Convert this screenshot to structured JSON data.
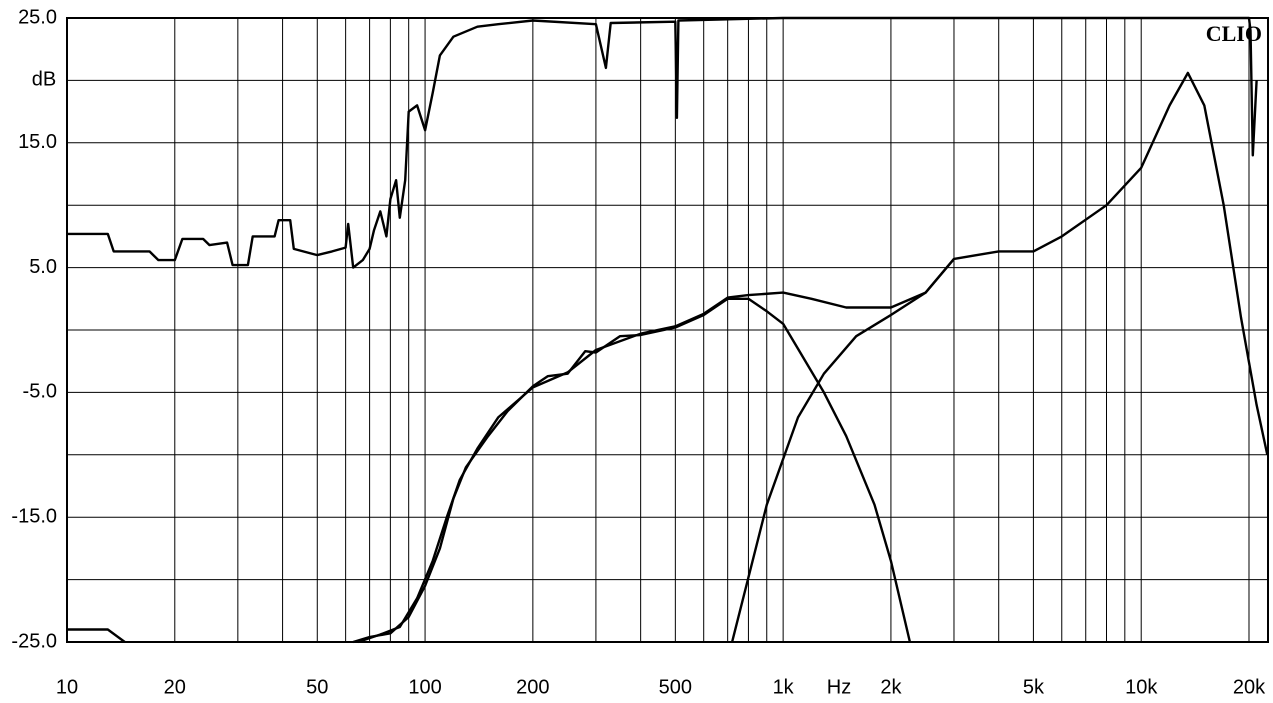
{
  "chart_data": {
    "type": "line",
    "title": "CLIO",
    "x_label": "Hz",
    "y_label": "dB",
    "log_x": true,
    "grid": true,
    "xlim": [
      10,
      22600
    ],
    "ylim": [
      -25,
      25
    ],
    "xticks": [
      10,
      20,
      50,
      100,
      200,
      500,
      {
        "value": 1000,
        "label": "1k"
      },
      {
        "value": 2000,
        "label": "2k"
      },
      {
        "value": 5000,
        "label": "5k"
      },
      {
        "value": 10000,
        "label": "10k"
      },
      {
        "value": 20000,
        "label": "20k"
      }
    ],
    "minor_xticks": [
      30,
      40,
      60,
      70,
      80,
      90,
      300,
      400,
      600,
      700,
      800,
      900,
      3000,
      4000,
      6000,
      7000,
      8000,
      9000
    ],
    "yticks": [
      {
        "value": 25,
        "label": "25.0"
      },
      {
        "value": 15,
        "label": "15.0"
      },
      {
        "value": 5,
        "label": "5.0"
      },
      {
        "value": -5,
        "label": "-5.0"
      },
      {
        "value": -15,
        "label": "-15.0"
      },
      {
        "value": -25,
        "label": "-25.0"
      }
    ],
    "minor_yticks": [
      20,
      10,
      0,
      -10,
      -20
    ],
    "series": [
      {
        "color": "#000000",
        "x": [
          10,
          13,
          13.5,
          17,
          18,
          20,
          21,
          24,
          25,
          28,
          29,
          32,
          33,
          38,
          39,
          42,
          43,
          50,
          55,
          60,
          61,
          63,
          67,
          70,
          72,
          75,
          78,
          80,
          83,
          85,
          88,
          90,
          95,
          100,
          105,
          110,
          120,
          140,
          160,
          200,
          300,
          320,
          330,
          500,
          505,
          510,
          1000,
          20000,
          20200,
          20500,
          21000
        ],
        "values": [
          7.7,
          7.7,
          6.3,
          6.3,
          5.6,
          5.6,
          7.3,
          7.3,
          6.8,
          7.0,
          5.2,
          5.2,
          7.5,
          7.5,
          8.8,
          8.8,
          6.5,
          6.0,
          6.3,
          6.6,
          8.5,
          5.0,
          5.6,
          6.5,
          8.0,
          9.5,
          7.5,
          10.5,
          12.0,
          9.0,
          12.0,
          17.5,
          18.0,
          16.0,
          19.0,
          22.0,
          23.5,
          24.3,
          24.5,
          24.8,
          24.5,
          21.0,
          24.6,
          24.7,
          17.0,
          24.8,
          25,
          25,
          24,
          14,
          20
        ]
      },
      {
        "color": "#000000",
        "x": [
          10,
          13,
          14.5,
          63,
          63,
          70,
          80,
          90,
          100,
          110,
          120,
          130,
          150,
          170,
          200,
          220,
          250,
          280,
          300,
          350,
          400,
          500,
          600,
          700,
          800,
          900,
          1000,
          1100,
          1300,
          1500,
          1800,
          2000,
          2260
        ],
        "values": [
          -24,
          -24,
          -25,
          null,
          -25,
          -24.6,
          -24.3,
          -23,
          -20.5,
          -17.5,
          -13.5,
          -11,
          -8.5,
          -6.5,
          -4.5,
          -3.7,
          -3.5,
          -1.7,
          -1.8,
          -0.5,
          -0.4,
          0.2,
          1.2,
          2.5,
          2.5,
          1.5,
          0.5,
          -1.5,
          -5,
          -8.5,
          -14,
          -18.5,
          -25
        ]
      },
      {
        "color": "#000000",
        "x": [
          720,
          900,
          1100,
          1300,
          1600,
          2000,
          2500,
          3000,
          4000,
          5000,
          6000,
          8000,
          10000,
          12000,
          13500,
          15000,
          17000,
          19000,
          21000,
          22500
        ],
        "values": [
          -25,
          -14,
          -7,
          -3.5,
          -0.5,
          1.2,
          3.0,
          5.7,
          6.3,
          6.3,
          7.5,
          10,
          13,
          18,
          20.6,
          18,
          10,
          1,
          -6,
          -10
        ]
      },
      {
        "color": "#000000",
        "x": [
          65,
          75,
          85,
          95,
          105,
          115,
          125,
          140,
          160,
          200,
          250,
          300,
          400,
          500,
          600,
          700,
          800,
          1000,
          1200,
          1500,
          2000,
          2500,
          3000
        ],
        "values": [
          -25,
          -24.4,
          -23.8,
          -21.5,
          -18.5,
          -15,
          -12,
          -9.5,
          -7,
          -4.6,
          -3.4,
          -1.6,
          -0.3,
          0.3,
          1.3,
          2.6,
          2.8,
          3.0,
          2.5,
          1.8,
          1.8,
          3.0,
          5.7
        ]
      }
    ]
  }
}
